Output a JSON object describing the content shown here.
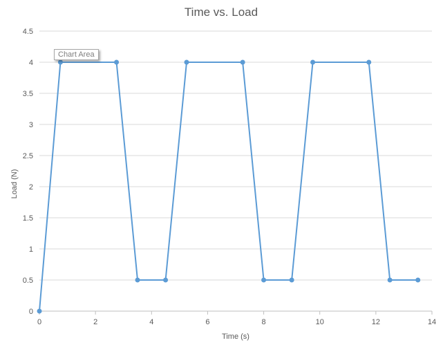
{
  "chart_data": {
    "type": "scatter",
    "mode": "lines+markers",
    "title": "Time vs. Load",
    "xlabel": "Time (s)",
    "ylabel": "Load (N)",
    "xlim": [
      0,
      14
    ],
    "ylim": [
      0,
      4.5
    ],
    "xticks": [
      0,
      2,
      4,
      6,
      8,
      10,
      12,
      14
    ],
    "yticks": [
      0,
      0.5,
      1,
      1.5,
      2,
      2.5,
      3,
      3.5,
      4,
      4.5
    ],
    "grid": "horizontal",
    "series": [
      {
        "color": "#5b9bd5",
        "x": [
          0,
          0.75,
          2.75,
          3.5,
          4.5,
          5.25,
          7.25,
          8,
          9,
          9.75,
          11.75,
          12.5,
          13.5
        ],
        "y": [
          0,
          4,
          4,
          0.5,
          0.5,
          4,
          4,
          0.5,
          0.5,
          4,
          4,
          0.5,
          0.5
        ]
      }
    ],
    "tooltip": "Chart Area"
  }
}
